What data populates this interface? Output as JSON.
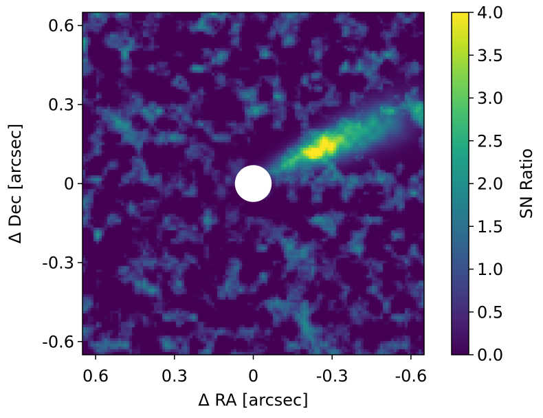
{
  "chart_data": {
    "type": "heatmap",
    "title": "",
    "xlabel": "Δ RA [arcsec]",
    "ylabel": "Δ Dec [arcsec]",
    "xlim": [
      0.65,
      -0.65
    ],
    "ylim": [
      -0.65,
      0.65
    ],
    "x_direction": "decreasing-left-to-right",
    "x_ticks": [
      {
        "value": 0.6,
        "label": "0.6"
      },
      {
        "value": 0.3,
        "label": "0.3"
      },
      {
        "value": 0,
        "label": "0"
      },
      {
        "value": -0.3,
        "label": "-0.3"
      },
      {
        "value": -0.6,
        "label": "-0.6"
      }
    ],
    "y_ticks": [
      {
        "value": 0.6,
        "label": "0.6"
      },
      {
        "value": 0.3,
        "label": "0.3"
      },
      {
        "value": 0,
        "label": "0"
      },
      {
        "value": -0.3,
        "label": "-0.3"
      },
      {
        "value": -0.6,
        "label": "-0.6"
      }
    ],
    "colormap": "viridis",
    "colorbar": {
      "label": "SN Ratio",
      "range": [
        0.0,
        4.0
      ],
      "ticks": [
        {
          "value": 0.0,
          "label": "0.0"
        },
        {
          "value": 0.5,
          "label": "0.5"
        },
        {
          "value": 1.0,
          "label": "1.0"
        },
        {
          "value": 1.5,
          "label": "1.5"
        },
        {
          "value": 2.0,
          "label": "2.0"
        },
        {
          "value": 2.5,
          "label": "2.5"
        },
        {
          "value": 3.0,
          "label": "3.0"
        },
        {
          "value": 3.5,
          "label": "3.5"
        },
        {
          "value": 4.0,
          "label": "4.0"
        }
      ]
    },
    "masked_region": {
      "shape": "circle",
      "center": [
        0,
        0
      ],
      "radius_arcsec": 0.07,
      "color": "#ffffff"
    },
    "features": [
      {
        "kind": "elongated-emission",
        "from": [
          -0.05,
          0.04
        ],
        "to": [
          -0.6,
          0.28
        ],
        "peak_sn": 4.0,
        "peak_at": [
          -0.25,
          0.11
        ]
      },
      {
        "kind": "background-noise",
        "typical_sn": [
          0.0,
          2.0
        ]
      }
    ],
    "grid": false,
    "legend": "none"
  }
}
